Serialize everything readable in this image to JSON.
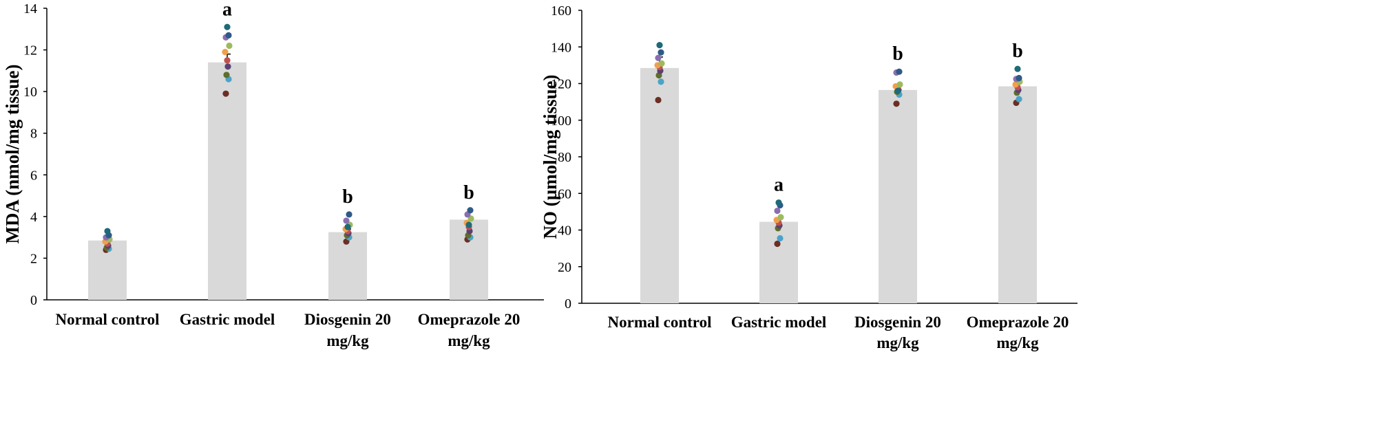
{
  "chart_data": [
    {
      "type": "bar",
      "ylabel": "MDA  (nmol/mg tissue)",
      "ylim": [
        0,
        14
      ],
      "yticks": [
        0,
        2,
        4,
        6,
        8,
        10,
        12,
        14
      ],
      "categories": [
        {
          "line1": "Normal control",
          "line2": ""
        },
        {
          "line1": "Gastric model",
          "line2": ""
        },
        {
          "line1": "Diosgenin 20",
          "line2": "mg/kg"
        },
        {
          "line1": "Omeprazole 20",
          "line2": "mg/kg"
        }
      ],
      "values": [
        2.85,
        11.4,
        3.25,
        3.85
      ],
      "errors": [
        0.1,
        0.4,
        0.15,
        0.15
      ],
      "significance": [
        "",
        "a",
        "b",
        "b"
      ],
      "points": [
        [
          2.4,
          2.45,
          2.5,
          2.6,
          2.7,
          2.8,
          2.9,
          3.0,
          3.1,
          3.3
        ],
        [
          9.9,
          10.6,
          10.8,
          11.2,
          11.5,
          11.9,
          12.2,
          12.6,
          12.7,
          13.1
        ],
        [
          2.8,
          3.0,
          3.1,
          3.2,
          3.3,
          3.4,
          3.6,
          3.8,
          4.1,
          3.5
        ],
        [
          2.9,
          3.0,
          3.1,
          3.3,
          3.5,
          3.7,
          3.9,
          4.1,
          4.3,
          3.6
        ]
      ]
    },
    {
      "type": "bar",
      "ylabel": "NO  (µmol/mg tissue)",
      "ylim": [
        0,
        160
      ],
      "yticks": [
        0,
        20,
        40,
        60,
        80,
        100,
        120,
        140,
        160
      ],
      "categories": [
        {
          "line1": "Normal control",
          "line2": ""
        },
        {
          "line1": "Gastric model",
          "line2": ""
        },
        {
          "line1": "Diosgenin 20",
          "line2": "mg/kg"
        },
        {
          "line1": "Omeprazole 20",
          "line2": "mg/kg"
        }
      ],
      "values": [
        128.5,
        44.5,
        116.5,
        118.5
      ],
      "errors": [
        6,
        2,
        3,
        2
      ],
      "significance": [
        "",
        "a",
        "b",
        "b"
      ],
      "points": [
        [
          111,
          121,
          124.5,
          127,
          129,
          130,
          131,
          134,
          137,
          141
        ],
        [
          32.5,
          35.5,
          41,
          42.5,
          44,
          45.5,
          47,
          50.5,
          53.5,
          55
        ],
        [
          109,
          114,
          115.5,
          116.5,
          117.5,
          118.5,
          119.5,
          126,
          126.5,
          116
        ],
        [
          109.5,
          111.5,
          115,
          116.5,
          118,
          119.5,
          121,
          122.5,
          123,
          128
        ]
      ]
    }
  ],
  "colors": {
    "bar": "#d9d9d9",
    "dots": [
      "#6b2f23",
      "#4aa3c8",
      "#5e6e2c",
      "#5b3f73",
      "#c05050",
      "#f0a04c",
      "#9dbb5e",
      "#8a6fb0",
      "#2f5a88",
      "#1e6a78"
    ]
  }
}
